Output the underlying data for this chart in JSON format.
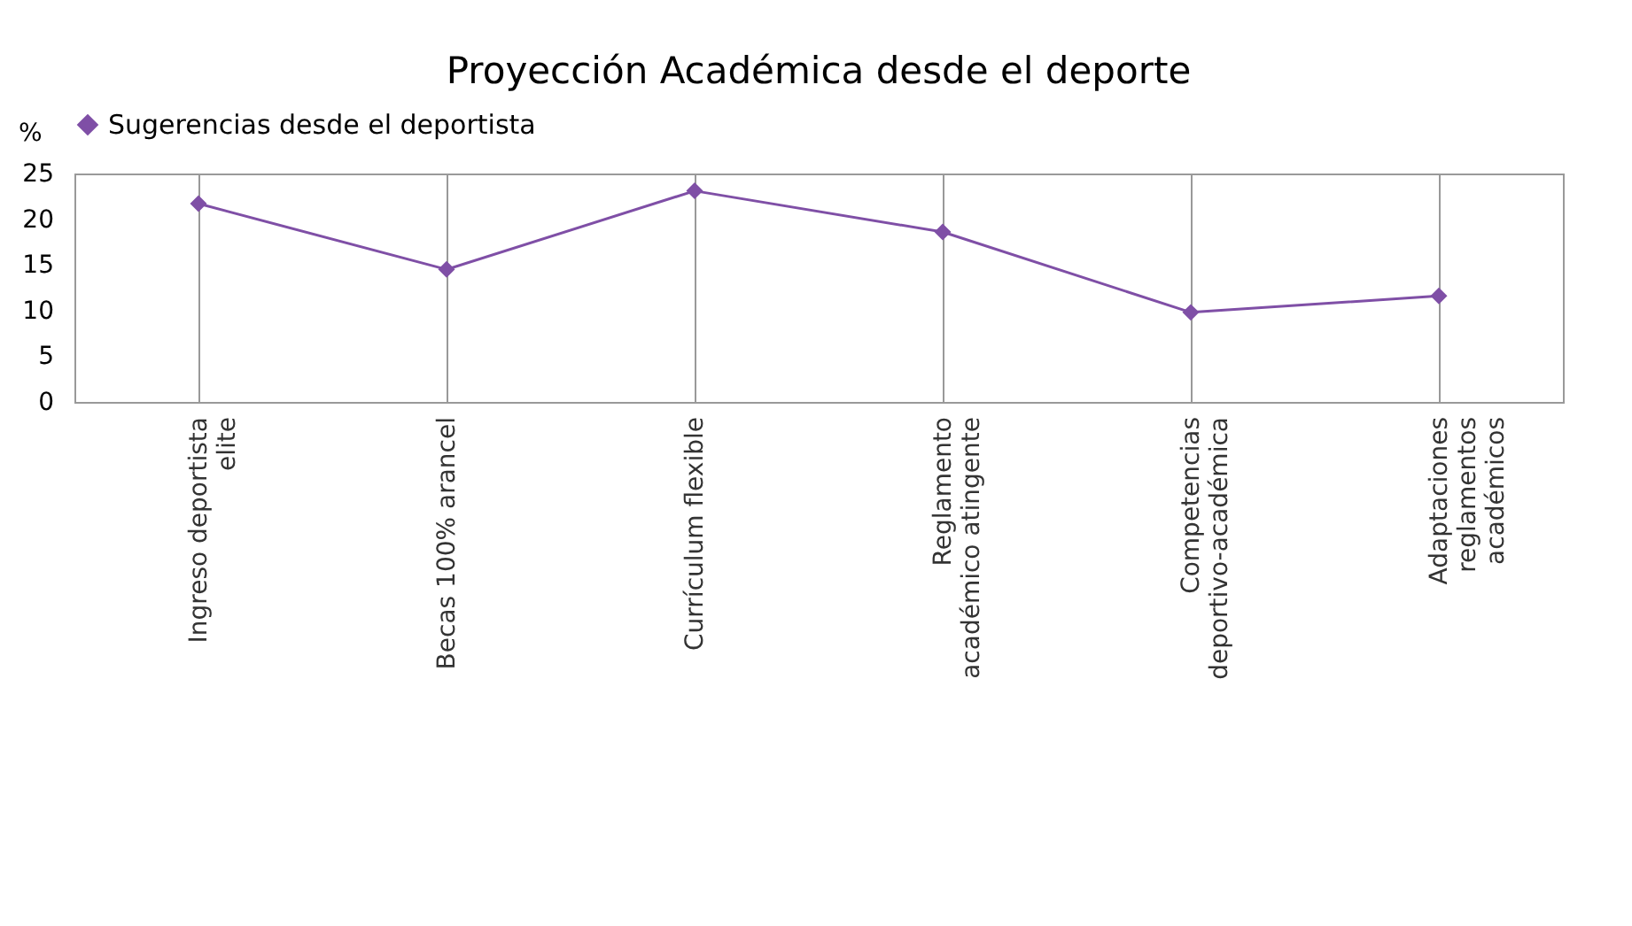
{
  "chart_data": {
    "type": "line",
    "title": "Proyección Académica desde el deporte",
    "ylabel": "%",
    "categories": [
      "Ingreso deportista elite",
      "Becas 100% arancel",
      "Currículum flexible",
      "Reglamento académico atingente",
      "Competencias deportivo-académica",
      "Adaptaciones reglamentos académicos"
    ],
    "series": [
      {
        "name": "Sugerencias desde el deportista",
        "color": "#7f4fa6",
        "values": [
          21.7,
          14.5,
          23.1,
          18.6,
          9.8,
          11.6
        ]
      }
    ],
    "ylim": [
      0,
      25
    ],
    "yticks": [
      0,
      5,
      10,
      15,
      20,
      25
    ],
    "grid": "x",
    "legend": "top",
    "marker": "diamond",
    "line_style": "solid"
  }
}
